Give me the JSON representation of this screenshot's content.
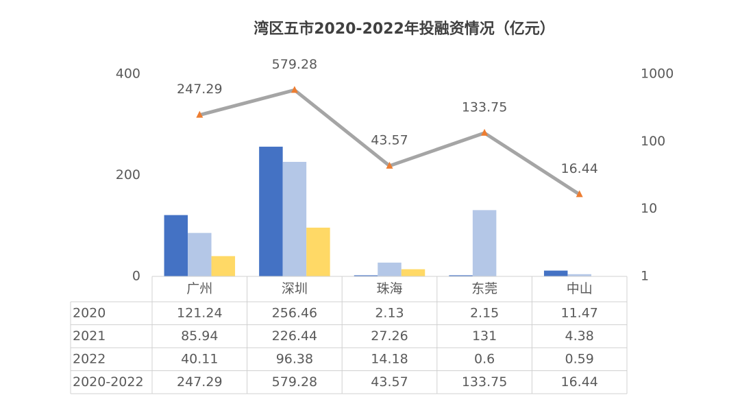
{
  "chart_data": {
    "type": "bar",
    "title": "湾区五市2020-2022年投融资情况（亿元）",
    "categories": [
      "广州",
      "深圳",
      "珠海",
      "东莞",
      "中山"
    ],
    "series": [
      {
        "name": "2020",
        "color": "#4472c4",
        "values": [
          121.24,
          256.46,
          2.13,
          2.15,
          11.47
        ]
      },
      {
        "name": "2021",
        "color": "#b4c7e7",
        "values": [
          85.94,
          226.44,
          27.26,
          131,
          4.38
        ]
      },
      {
        "name": "2022",
        "color": "#ffd966",
        "values": [
          40.11,
          96.38,
          14.18,
          0.6,
          0.59
        ]
      },
      {
        "name": "2020-2022",
        "type": "line",
        "axis": "y2",
        "color": "#a5a5a5",
        "marker_color": "#ed7d31",
        "values": [
          247.29,
          579.28,
          43.57,
          133.75,
          16.44
        ]
      }
    ],
    "ylim": [
      0,
      400
    ],
    "yticks": [
      0,
      200,
      400
    ],
    "y2lim": [
      1,
      1000
    ],
    "y2ticks": [
      1,
      10,
      100,
      1000
    ],
    "y2scale": "log",
    "data_table": true
  }
}
